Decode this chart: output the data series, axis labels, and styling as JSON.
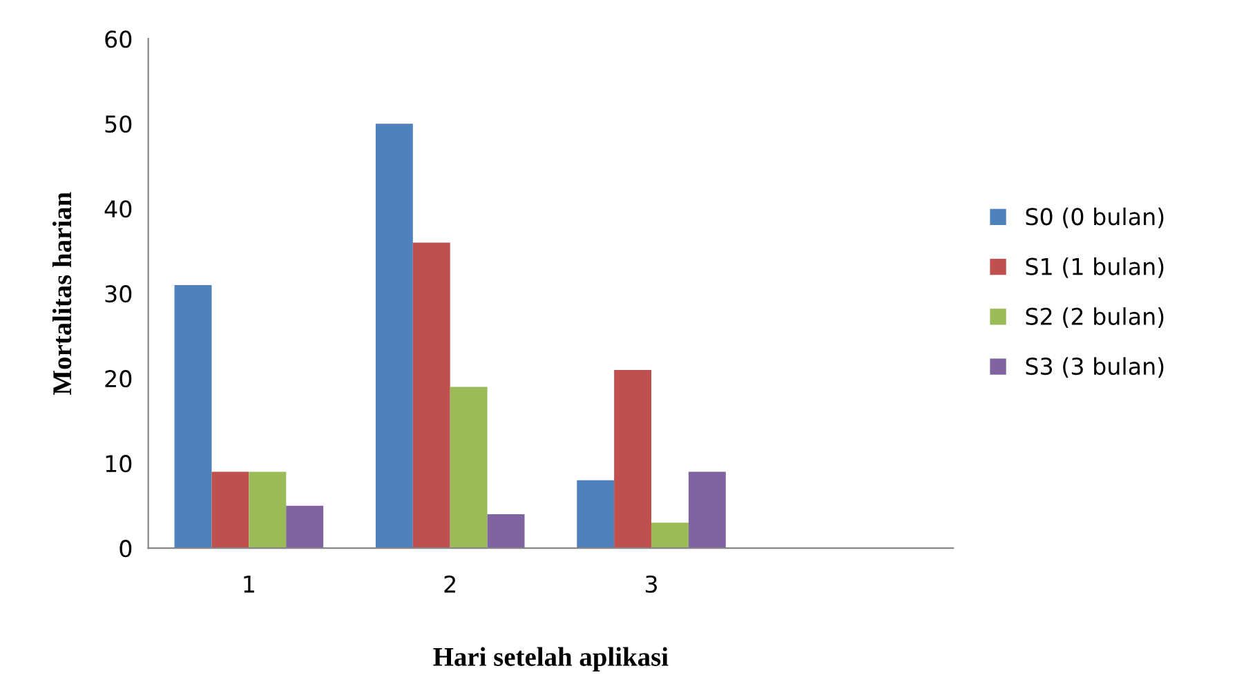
{
  "chart_data": {
    "type": "bar",
    "xlabel": "Hari setelah aplikasi",
    "ylabel": "Mortalitas harian",
    "categories": [
      "1",
      "2",
      "3",
      null
    ],
    "series": [
      {
        "name": "S0 (0 bulan)",
        "color": "#4f81bd",
        "values": [
          31,
          50,
          8,
          null
        ]
      },
      {
        "name": "S1 (1 bulan)",
        "color": "#c0504d",
        "values": [
          9,
          36,
          21,
          null
        ]
      },
      {
        "name": "S2 (2 bulan)",
        "color": "#9bbb59",
        "values": [
          9,
          19,
          3,
          null
        ]
      },
      {
        "name": "S3 (3 bulan)",
        "color": "#8064a2",
        "values": [
          5,
          4,
          9,
          null
        ]
      }
    ],
    "ylim": [
      0,
      60
    ],
    "yticks": [
      0,
      10,
      20,
      30,
      40,
      50,
      60
    ],
    "grid": false,
    "legend": "right"
  }
}
